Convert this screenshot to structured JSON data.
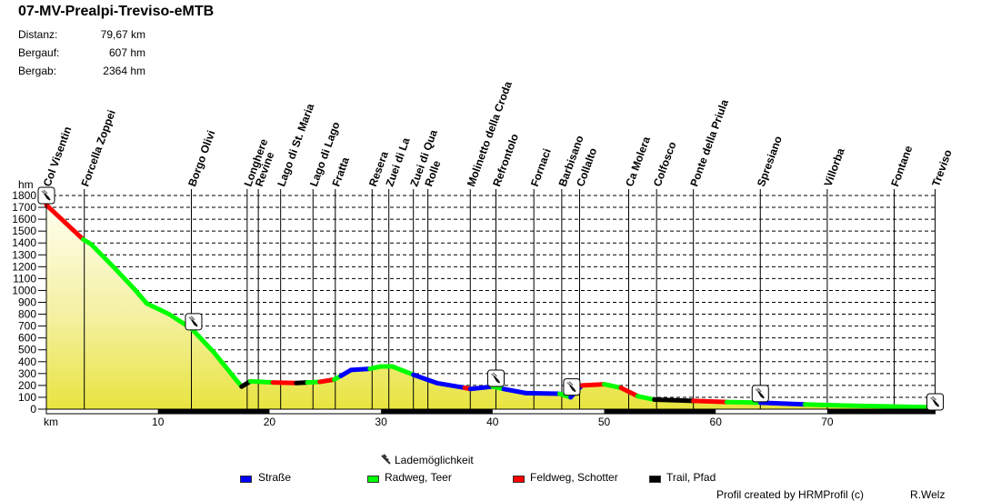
{
  "header": {
    "title": "07-MV-Prealpi-Treviso-eMTB",
    "stats": [
      {
        "label": "Distanz:",
        "value": "79,67 km"
      },
      {
        "label": "Bergauf:",
        "value": "607 hm"
      },
      {
        "label": "Bergab:",
        "value": "2364 hm"
      }
    ]
  },
  "legend": {
    "charging_label": "Lademöglichkeit",
    "items": [
      {
        "label": "Straße",
        "color": "#0000ff"
      },
      {
        "label": "Radweg, Teer",
        "color": "#00ff00"
      },
      {
        "label": "Feldweg, Schotter",
        "color": "#ff0000"
      },
      {
        "label": "Trail, Pfad",
        "color": "#000000"
      }
    ]
  },
  "footer": {
    "credit": "Profil created by HRMProfil (c)",
    "author": "R.Welz"
  },
  "chart_data": {
    "type": "area",
    "title": "07-MV-Prealpi-Treviso-eMTB",
    "xlabel": "km",
    "ylabel": "hm",
    "xlim": [
      0,
      79.67
    ],
    "ylim": [
      0,
      1800
    ],
    "yticks": [
      0,
      100,
      200,
      300,
      400,
      500,
      600,
      700,
      800,
      900,
      1000,
      1100,
      1200,
      1300,
      1400,
      1500,
      1600,
      1700,
      1800
    ],
    "xticks": [
      10,
      20,
      30,
      40,
      50,
      60,
      70
    ],
    "grid": "horizontal dashed",
    "profile": [
      {
        "km": 0,
        "hm": 1720,
        "surface": "Feldweg, Schotter"
      },
      {
        "km": 3.3,
        "hm": 1430,
        "surface": "Radweg, Teer"
      },
      {
        "km": 4,
        "hm": 1390,
        "surface": "Radweg, Teer"
      },
      {
        "km": 6,
        "hm": 1200,
        "surface": "Radweg, Teer"
      },
      {
        "km": 8,
        "hm": 1000,
        "surface": "Radweg, Teer"
      },
      {
        "km": 9,
        "hm": 890,
        "surface": "Radweg, Teer"
      },
      {
        "km": 11,
        "hm": 800,
        "surface": "Radweg, Teer"
      },
      {
        "km": 13,
        "hm": 680,
        "surface": "Radweg, Teer"
      },
      {
        "km": 15,
        "hm": 480,
        "surface": "Radweg, Teer"
      },
      {
        "km": 17.5,
        "hm": 190,
        "surface": "Trail, Pfad"
      },
      {
        "km": 18.3,
        "hm": 235,
        "surface": "Radweg, Teer"
      },
      {
        "km": 20.3,
        "hm": 225,
        "surface": "Feldweg, Schotter"
      },
      {
        "km": 22.4,
        "hm": 220,
        "surface": "Trail, Pfad"
      },
      {
        "km": 23.4,
        "hm": 225,
        "surface": "Radweg, Teer"
      },
      {
        "km": 24.5,
        "hm": 230,
        "surface": "Feldweg, Schotter"
      },
      {
        "km": 25.8,
        "hm": 250,
        "surface": "Radweg, Teer"
      },
      {
        "km": 26.4,
        "hm": 280,
        "surface": "Straße"
      },
      {
        "km": 27.3,
        "hm": 330,
        "surface": "Straße"
      },
      {
        "km": 29,
        "hm": 340,
        "surface": "Radweg, Teer"
      },
      {
        "km": 30,
        "hm": 360,
        "surface": "Radweg, Teer"
      },
      {
        "km": 31,
        "hm": 360,
        "surface": "Radweg, Teer"
      },
      {
        "km": 32.9,
        "hm": 290,
        "surface": "Straße"
      },
      {
        "km": 35,
        "hm": 220,
        "surface": "Straße"
      },
      {
        "km": 37.5,
        "hm": 180,
        "surface": "Feldweg, Schotter"
      },
      {
        "km": 38,
        "hm": 170,
        "surface": "Straße"
      },
      {
        "km": 40,
        "hm": 190,
        "surface": "Radweg, Teer"
      },
      {
        "km": 41,
        "hm": 170,
        "surface": "Straße"
      },
      {
        "km": 43,
        "hm": 135,
        "surface": "Straße"
      },
      {
        "km": 46,
        "hm": 130,
        "surface": "Radweg, Teer"
      },
      {
        "km": 47,
        "hm": 100,
        "surface": "Straße"
      },
      {
        "km": 48,
        "hm": 200,
        "surface": "Feldweg, Schotter"
      },
      {
        "km": 50,
        "hm": 210,
        "surface": "Radweg, Teer"
      },
      {
        "km": 51.5,
        "hm": 180,
        "surface": "Feldweg, Schotter"
      },
      {
        "km": 53,
        "hm": 110,
        "surface": "Radweg, Teer"
      },
      {
        "km": 54.5,
        "hm": 80,
        "surface": "Trail, Pfad"
      },
      {
        "km": 58,
        "hm": 70,
        "surface": "Feldweg, Schotter"
      },
      {
        "km": 61,
        "hm": 60,
        "surface": "Radweg, Teer"
      },
      {
        "km": 64,
        "hm": 55,
        "surface": "Straße"
      },
      {
        "km": 68,
        "hm": 40,
        "surface": "Radweg, Teer"
      },
      {
        "km": 72,
        "hm": 30,
        "surface": "Radweg, Teer"
      },
      {
        "km": 79.67,
        "hm": 15,
        "surface": "Radweg, Teer"
      }
    ],
    "waypoints": [
      {
        "name": "Col Visentin",
        "km": 0
      },
      {
        "name": "Forcella Zoppei",
        "km": 3.4
      },
      {
        "name": "Borgo Olivi",
        "km": 13.0
      },
      {
        "name": "Longhere",
        "km": 18.0
      },
      {
        "name": "Revine",
        "km": 19.0
      },
      {
        "name": "Lago di St. Maria",
        "km": 21.0
      },
      {
        "name": "Lago di Lago",
        "km": 23.9
      },
      {
        "name": "Fratta",
        "km": 25.9
      },
      {
        "name": "Resera",
        "km": 29.2
      },
      {
        "name": "Zuei di La",
        "km": 30.7
      },
      {
        "name": "Zuei di Qua",
        "km": 32.9
      },
      {
        "name": "Rolle",
        "km": 34.2
      },
      {
        "name": "Molinetto della Croda",
        "km": 38.0
      },
      {
        "name": "Refrontolo",
        "km": 40.3
      },
      {
        "name": "Fornaci",
        "km": 43.7
      },
      {
        "name": "Barbisano",
        "km": 46.2
      },
      {
        "name": "Collalto",
        "km": 47.8
      },
      {
        "name": "Ca Molera",
        "km": 52.2
      },
      {
        "name": "Colfosco",
        "km": 54.7
      },
      {
        "name": "Ponte della Priula",
        "km": 58.0
      },
      {
        "name": "Spresiano",
        "km": 64.0
      },
      {
        "name": "Villorba",
        "km": 70.0
      },
      {
        "name": "Fontane",
        "km": 76.0
      },
      {
        "name": "Treviso",
        "km": 79.67
      }
    ],
    "charging_points_km": [
      0,
      13.2,
      40.3,
      47.1,
      64.0,
      79.67
    ],
    "legend": [
      "Lademöglichkeit",
      "Straße",
      "Radweg, Teer",
      "Feldweg, Schotter",
      "Trail, Pfad"
    ],
    "legend_position": "bottom"
  }
}
